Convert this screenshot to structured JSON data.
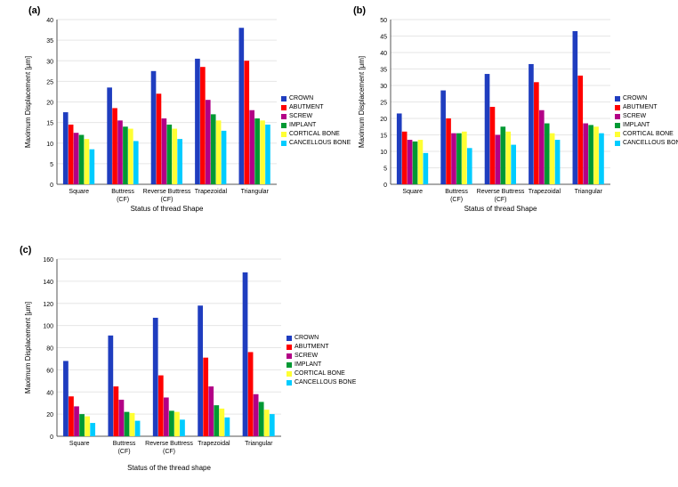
{
  "common": {
    "series": [
      "CROWN",
      "ABUTMENT",
      "SCREW",
      "IMPLANT",
      "CORTICAL BONE",
      "CANCELLOUS BONE"
    ],
    "series_colors": [
      "#1f3dbf",
      "#ff0000",
      "#b30086",
      "#009933",
      "#ffff33",
      "#00ccff"
    ],
    "categories": [
      "Square",
      "Buttress (CF)",
      "Reverse Buttress (CF)",
      "Trapezoidal",
      "Triangular"
    ],
    "grid_color": "#e6e6e6",
    "axis_color": "#555555",
    "background_color": "#ffffff",
    "bar_width": 0.12,
    "group_gap": 0.28,
    "label_fontsize": 8,
    "tick_fontsize": 7,
    "legend_fontsize": 7,
    "xlabel_a": "Status of thread Shape",
    "xlabel_b": "Status of thread Shape",
    "xlabel_c": "Status of the thread shape",
    "ylabel": "Maximum Displacement [μm]"
  },
  "panels": {
    "a": {
      "label": "(a)",
      "ylim": [
        0,
        40
      ],
      "ytick_step": 5,
      "values": [
        [
          17.5,
          14.5,
          12.5,
          12.0,
          11.0,
          8.5
        ],
        [
          23.5,
          18.5,
          15.5,
          14.0,
          13.5,
          10.5
        ],
        [
          27.5,
          22.0,
          16.0,
          14.5,
          13.5,
          11.0
        ],
        [
          30.5,
          28.5,
          20.5,
          17.0,
          15.5,
          13.0
        ],
        [
          38.0,
          30.0,
          18.0,
          16.0,
          15.5,
          14.5
        ]
      ]
    },
    "b": {
      "label": "(b)",
      "ylim": [
        0,
        50
      ],
      "ytick_step": 5,
      "values": [
        [
          21.5,
          16.0,
          13.5,
          13.0,
          13.5,
          9.5
        ],
        [
          28.5,
          20.0,
          15.5,
          15.5,
          16.0,
          11.0
        ],
        [
          33.5,
          23.5,
          15.0,
          17.5,
          16.0,
          12.0
        ],
        [
          36.5,
          31.0,
          22.5,
          18.5,
          15.5,
          13.5
        ],
        [
          46.5,
          33.0,
          18.5,
          18.0,
          17.5,
          15.5
        ]
      ]
    },
    "c": {
      "label": "(c)",
      "ylim": [
        0,
        160
      ],
      "ytick_step": 20,
      "values": [
        [
          68,
          36,
          27,
          20,
          18,
          12
        ],
        [
          91,
          45,
          33,
          22,
          21,
          14
        ],
        [
          107,
          55,
          35,
          23,
          22,
          15
        ],
        [
          118,
          71,
          45,
          28,
          25,
          17
        ],
        [
          148,
          76,
          38,
          31,
          24,
          20
        ]
      ]
    }
  }
}
